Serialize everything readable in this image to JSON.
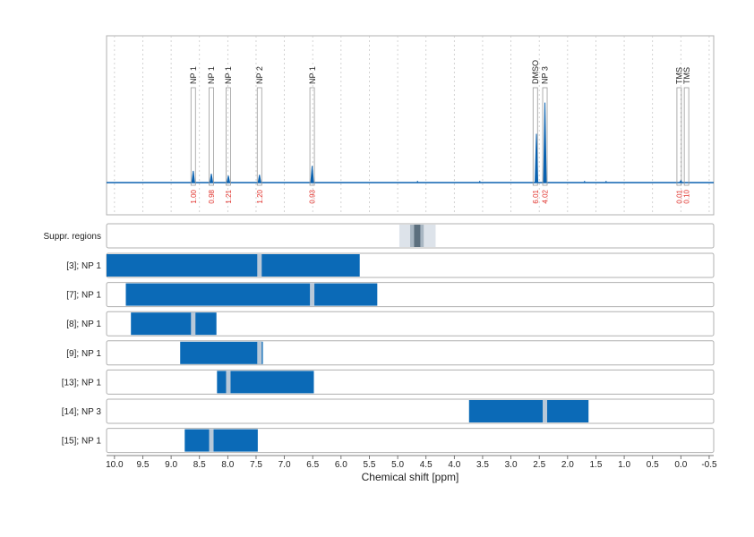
{
  "chart_data": {
    "type": "nmr-spectrum-with-region-bars",
    "xlabel": "Chemical shift [ppm]",
    "xlim": [
      10.14,
      -0.58
    ],
    "x_reversed": true,
    "x_ticks": [
      {
        "value": 10.0,
        "label": "10.0"
      },
      {
        "value": 9.5,
        "label": "9.5"
      },
      {
        "value": 9.0,
        "label": "9.0"
      },
      {
        "value": 8.5,
        "label": "8.5"
      },
      {
        "value": 8.0,
        "label": "8.0"
      },
      {
        "value": 7.5,
        "label": "7.5"
      },
      {
        "value": 7.0,
        "label": "7.0"
      },
      {
        "value": 6.5,
        "label": "6.5"
      },
      {
        "value": 6.0,
        "label": "6.0"
      },
      {
        "value": 5.5,
        "label": "5.5"
      },
      {
        "value": 5.0,
        "label": "5.0"
      },
      {
        "value": 4.5,
        "label": "4.5"
      },
      {
        "value": 4.0,
        "label": "4.0"
      },
      {
        "value": 3.5,
        "label": "3.5"
      },
      {
        "value": 3.0,
        "label": "3.0"
      },
      {
        "value": 2.5,
        "label": "2.5"
      },
      {
        "value": 2.0,
        "label": "2.0"
      },
      {
        "value": 1.5,
        "label": "1.5"
      },
      {
        "value": 1.0,
        "label": "1.0"
      },
      {
        "value": 0.5,
        "label": "0.5"
      },
      {
        "value": 0.0,
        "label": "0.0"
      },
      {
        "value": -0.5,
        "label": "-0.5"
      }
    ],
    "spectrum": {
      "color": "#0b62b0",
      "baseline_level": 0.0,
      "peaks": [
        {
          "ppm": 8.61,
          "height": 0.12
        },
        {
          "ppm": 8.29,
          "height": 0.09
        },
        {
          "ppm": 7.99,
          "height": 0.07
        },
        {
          "ppm": 7.44,
          "height": 0.08
        },
        {
          "ppm": 6.51,
          "height": 0.17
        },
        {
          "ppm": 2.55,
          "height": 0.5
        },
        {
          "ppm": 2.4,
          "height": 0.82
        },
        {
          "ppm": 0.0,
          "height": 0.02
        }
      ],
      "noise_bumps": [
        {
          "ppm": 4.65,
          "height": 0.01
        },
        {
          "ppm": 3.55,
          "height": 0.01
        },
        {
          "ppm": 1.7,
          "height": 0.01
        },
        {
          "ppm": 1.32,
          "height": 0.01
        }
      ]
    },
    "annotations": [
      {
        "ppm": 8.61,
        "label": "NP 1",
        "integral": "1.00"
      },
      {
        "ppm": 8.29,
        "label": "NP 1",
        "integral": "0.98"
      },
      {
        "ppm": 7.99,
        "label": "NP 1",
        "integral": "1.21"
      },
      {
        "ppm": 7.44,
        "label": "NP 2",
        "integral": "1.20"
      },
      {
        "ppm": 6.51,
        "label": "NP 1",
        "integral": "0.93"
      },
      {
        "ppm": 2.57,
        "label": "DMSO",
        "integral": "6.01"
      },
      {
        "ppm": 2.4,
        "label": "NP 3",
        "integral": "4.02"
      },
      {
        "ppm": 0.03,
        "label": "TMS",
        "integral": "0.01"
      },
      {
        "ppm": -0.1,
        "label": "TMS",
        "integral": "0.10"
      }
    ],
    "suppression": {
      "label": "Suppr. regions",
      "outer": [
        4.97,
        4.33
      ],
      "inner": [
        4.78,
        4.54
      ],
      "core": [
        4.71,
        4.6
      ]
    },
    "rows": [
      {
        "label": "[3]; NP 1",
        "range": [
          10.14,
          5.67
        ],
        "marker": 7.44
      },
      {
        "label": "[7]; NP 1",
        "range": [
          9.8,
          5.36
        ],
        "marker": 6.51
      },
      {
        "label": "[8]; NP 1",
        "range": [
          9.71,
          8.2
        ],
        "marker": 8.61
      },
      {
        "label": "[9]; NP 1",
        "range": [
          8.84,
          7.38
        ],
        "marker": 7.44
      },
      {
        "label": "[13]; NP 1",
        "range": [
          8.19,
          6.48
        ],
        "marker": 7.99
      },
      {
        "label": "[14]; NP 3",
        "range": [
          3.74,
          1.63
        ],
        "marker": 2.4
      },
      {
        "label": "[15]; NP 1",
        "range": [
          8.76,
          7.47
        ],
        "marker": 8.29
      }
    ],
    "colors": {
      "bar": "#0b6ab7",
      "marker": "#b8c8d8",
      "grid": "#c8c8c8",
      "frame": "#b0b0b0",
      "integral": "#e0302a",
      "suppr_outer": "#dde3ea",
      "suppr_inner": "#a8b6c2",
      "suppr_core": "#5c6f7e"
    }
  }
}
